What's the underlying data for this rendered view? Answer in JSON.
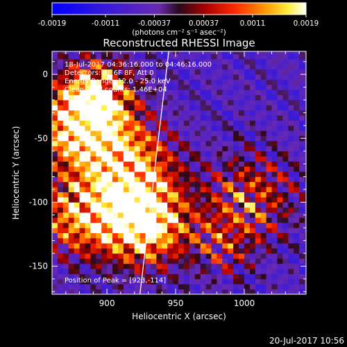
{
  "colorbar": {
    "ticks": [
      -0.0019,
      -0.0011,
      -0.00037,
      0.00037,
      0.0011,
      0.0019
    ],
    "tick_labels": [
      "-0.0019",
      "-0.0011",
      "-0.00037",
      "0.00037",
      "0.0011",
      "0.0019"
    ],
    "units_label": "(photons cm⁻² s⁻¹ asec⁻²)",
    "range": [
      -0.0019,
      0.0019
    ]
  },
  "plot": {
    "title": "Reconstructed RHESSI Image",
    "xlabel": "Heliocentric X (arcsec)",
    "ylabel": "Heliocentric Y (arcsec)",
    "annotations": [
      "18-Jul-2017 04:36:16.000 to 04:46:16.000",
      "Detectors: 3F 6F 8F, Att 0",
      "Energy Range: 12.0 - 25.0 keV",
      "Clean    Total counts: 1.46E+04"
    ],
    "peak_label": "Position of Peak = [923,-114]"
  },
  "footer": {
    "timestamp": "20-Jul-2017 10:56"
  },
  "chart_data": {
    "type": "heatmap",
    "title": "Reconstructed RHESSI Image",
    "xlabel": "Heliocentric X (arcsec)",
    "ylabel": "Heliocentric Y (arcsec)",
    "xlim": [
      860,
      1045
    ],
    "ylim": [
      -172,
      18
    ],
    "x_ticks": [
      900,
      950,
      1000
    ],
    "y_ticks": [
      0,
      -50,
      -100,
      -150
    ],
    "colorbar_range": [
      -0.0019,
      0.0019
    ],
    "peak_position": [
      923,
      -114
    ],
    "limb_line": [
      [
        945,
        18
      ],
      [
        924,
        -172
      ]
    ],
    "cell_size_arcsec": 4,
    "sources": [
      {
        "x": 925,
        "y": -114,
        "amplitude": 0.0019,
        "radius": 22
      },
      {
        "x": 880,
        "y": -42,
        "amplitude": 0.0015,
        "radius": 22
      },
      {
        "x": 893,
        "y": -15,
        "amplitude": 0.0012,
        "radius": 18
      },
      {
        "x": 915,
        "y": -70,
        "amplitude": 0.0012,
        "radius": 22
      },
      {
        "x": 878,
        "y": -110,
        "amplitude": 0.0011,
        "radius": 20
      },
      {
        "x": 1005,
        "y": -95,
        "amplitude": 0.0007,
        "radius": 22
      },
      {
        "x": 985,
        "y": -130,
        "amplitude": 0.0005,
        "radius": 18
      }
    ],
    "background": -0.0006,
    "ripple_amplitude": 0.0008,
    "ripple_period_arcsec": 16
  }
}
